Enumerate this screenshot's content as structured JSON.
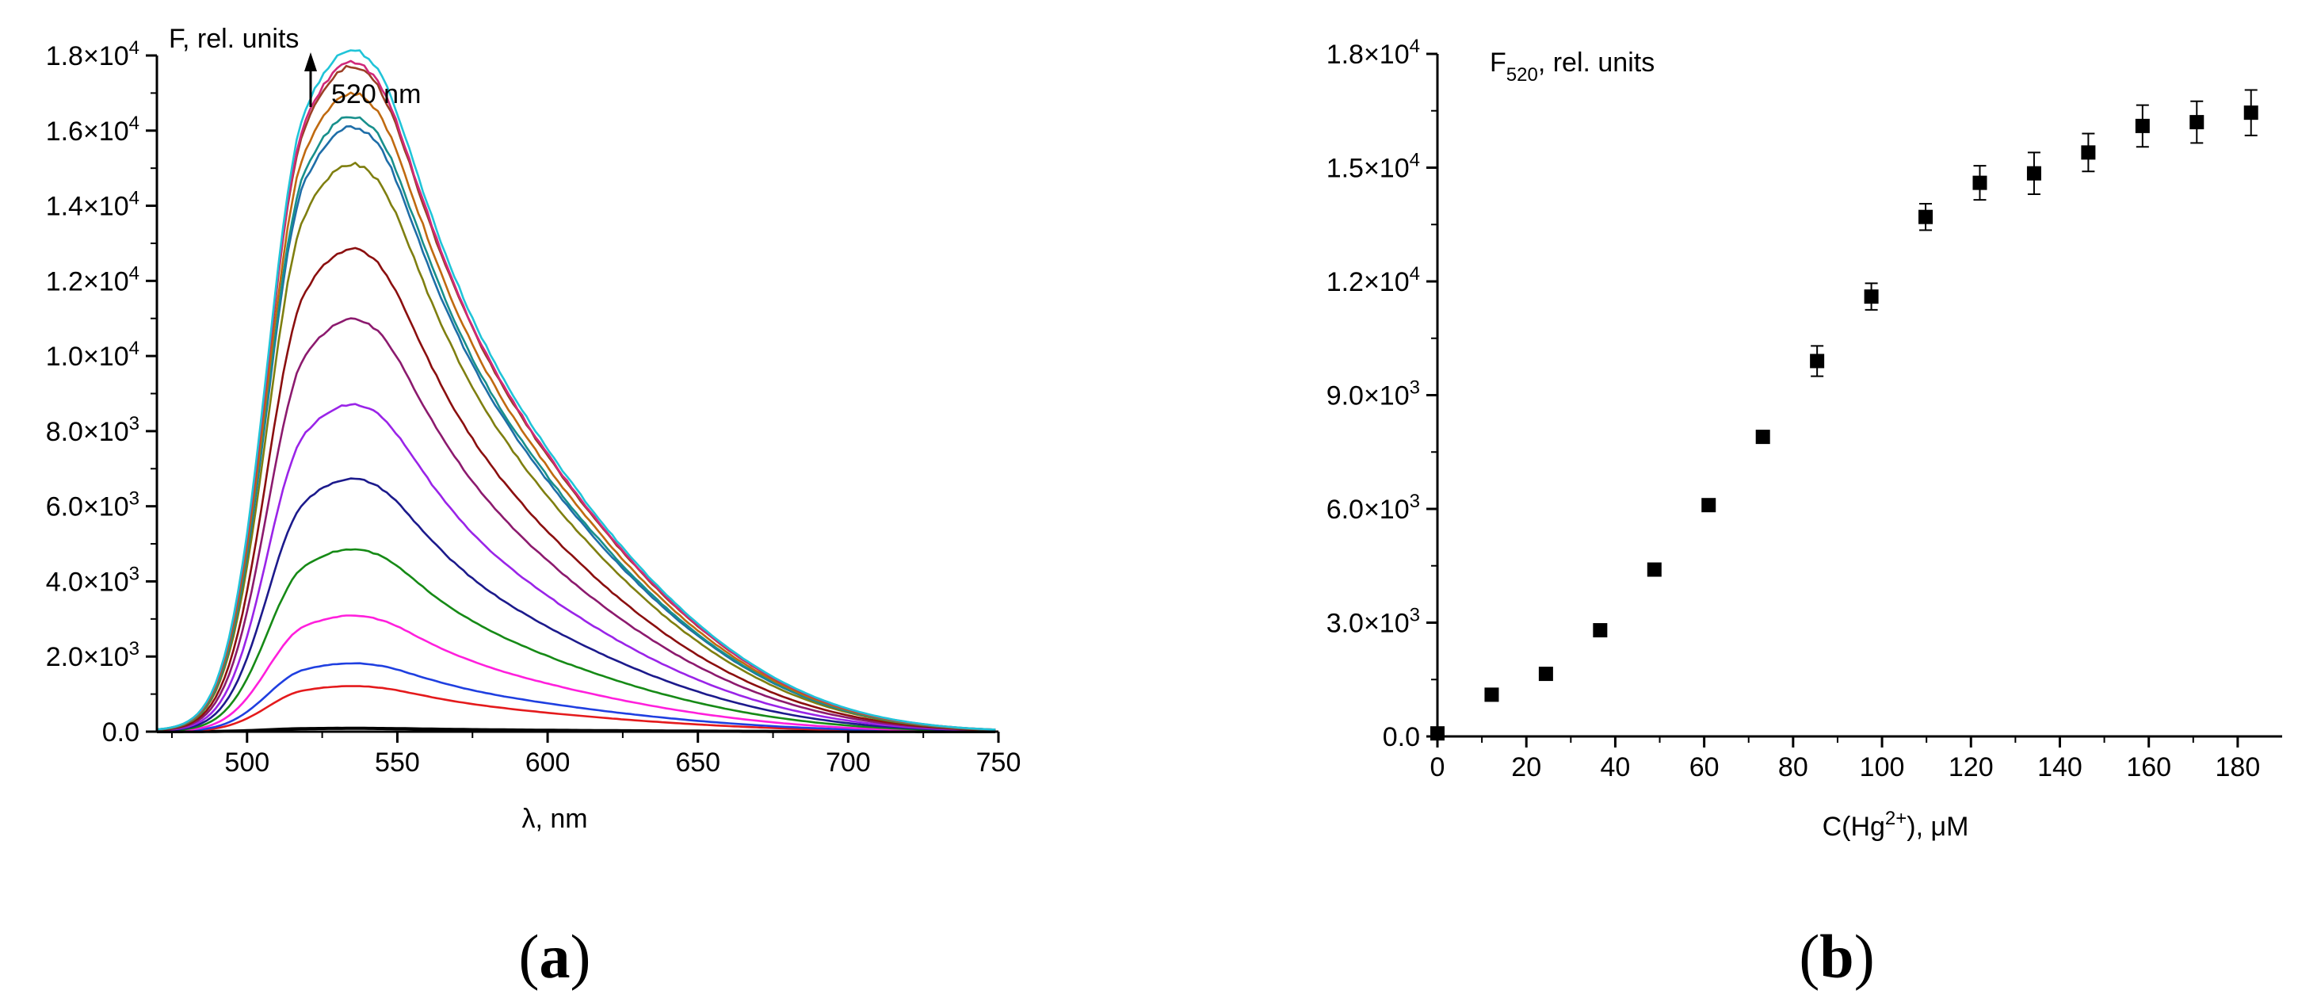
{
  "chart_data": [
    {
      "type": "line",
      "panel": "a",
      "ylabel": "F, rel. units",
      "xlabel": "λ, nm",
      "annotation": "520 nm",
      "xlim": [
        470,
        750
      ],
      "ylim": [
        0,
        18000
      ],
      "xticks": [
        500,
        550,
        600,
        650,
        700,
        750
      ],
      "xtick_labels": [
        "500",
        "550",
        "600",
        "650",
        "700",
        "750"
      ],
      "yticks": [
        0,
        2000,
        4000,
        6000,
        8000,
        10000,
        12000,
        14000,
        16000,
        18000
      ],
      "ytick_labels": [
        {
          "mant": "0.0",
          "exp": ""
        },
        {
          "mant": "2.0×10",
          "exp": "3"
        },
        {
          "mant": "4.0×10",
          "exp": "3"
        },
        {
          "mant": "6.0×10",
          "exp": "3"
        },
        {
          "mant": "8.0×10",
          "exp": "3"
        },
        {
          "mant": "1.0×10",
          "exp": "4"
        },
        {
          "mant": "1.2×10",
          "exp": "4"
        },
        {
          "mant": "1.4×10",
          "exp": "4"
        },
        {
          "mant": "1.6×10",
          "exp": "4"
        },
        {
          "mant": "1.8×10",
          "exp": "4"
        }
      ],
      "grid": false,
      "legend": "none",
      "peak_nm": 519,
      "shoulder_nm": 552,
      "series": [
        {
          "color": "#000000",
          "peak": 80
        },
        {
          "color": "#e41a1c",
          "peak": 1100
        },
        {
          "color": "#1f3fe0",
          "peak": 1650
        },
        {
          "color": "#ff1fdc",
          "peak": 2800
        },
        {
          "color": "#168a16",
          "peak": 4400
        },
        {
          "color": "#1c1a8c",
          "peak": 6100
        },
        {
          "color": "#9a24e8",
          "peak": 7900
        },
        {
          "color": "#8c1a6e",
          "peak": 9950
        },
        {
          "color": "#8b0f0f",
          "peak": 11650
        },
        {
          "color": "#7f7f10",
          "peak": 13700
        },
        {
          "color": "#1f6ea8",
          "peak": 14600
        },
        {
          "color": "#18908c",
          "peak": 14850
        },
        {
          "color": "#c06a10",
          "peak": 15400
        },
        {
          "color": "#9c3f26",
          "peak": 16050
        },
        {
          "color": "#d0287a",
          "peak": 16150
        },
        {
          "color": "#20c4d8",
          "peak": 16450
        }
      ]
    },
    {
      "type": "scatter",
      "panel": "b",
      "ylabel_main": "F",
      "ylabel_sub": "520",
      "ylabel_rest": ", rel. units",
      "xlabel_pre": "C(Hg",
      "xlabel_sup": "2+",
      "xlabel_post": "), μM",
      "xlim": [
        0,
        190
      ],
      "ylim": [
        0,
        18000
      ],
      "xticks": [
        0,
        20,
        40,
        60,
        80,
        100,
        120,
        140,
        160,
        180
      ],
      "xtick_labels": [
        "0",
        "20",
        "40",
        "60",
        "80",
        "100",
        "120",
        "140",
        "160",
        "180"
      ],
      "yticks": [
        0,
        3000,
        6000,
        9000,
        12000,
        15000,
        18000
      ],
      "ytick_labels": [
        {
          "mant": "0.0",
          "exp": ""
        },
        {
          "mant": "3.0×10",
          "exp": "3"
        },
        {
          "mant": "6.0×10",
          "exp": "3"
        },
        {
          "mant": "9.0×10",
          "exp": "3"
        },
        {
          "mant": "1.2×10",
          "exp": "4"
        },
        {
          "mant": "1.5×10",
          "exp": "4"
        },
        {
          "mant": "1.8×10",
          "exp": "4"
        }
      ],
      "grid": false,
      "legend": "none",
      "x": [
        0,
        12.2,
        24.4,
        36.6,
        48.8,
        61,
        73.2,
        85.4,
        97.6,
        109.8,
        122,
        134.2,
        146.4,
        158.6,
        170.8,
        183
      ],
      "y": [
        80,
        1100,
        1650,
        2800,
        4400,
        6100,
        7900,
        9900,
        11600,
        13700,
        14600,
        14850,
        15400,
        16100,
        16200,
        16450
      ],
      "yerr": [
        0,
        0,
        0,
        0,
        0,
        0,
        0,
        400,
        350,
        350,
        450,
        550,
        500,
        550,
        550,
        600
      ]
    }
  ],
  "panel_labels": [
    {
      "open": "(",
      "letter": "a",
      "close": ")"
    },
    {
      "open": "(",
      "letter": "b",
      "close": ")"
    }
  ]
}
